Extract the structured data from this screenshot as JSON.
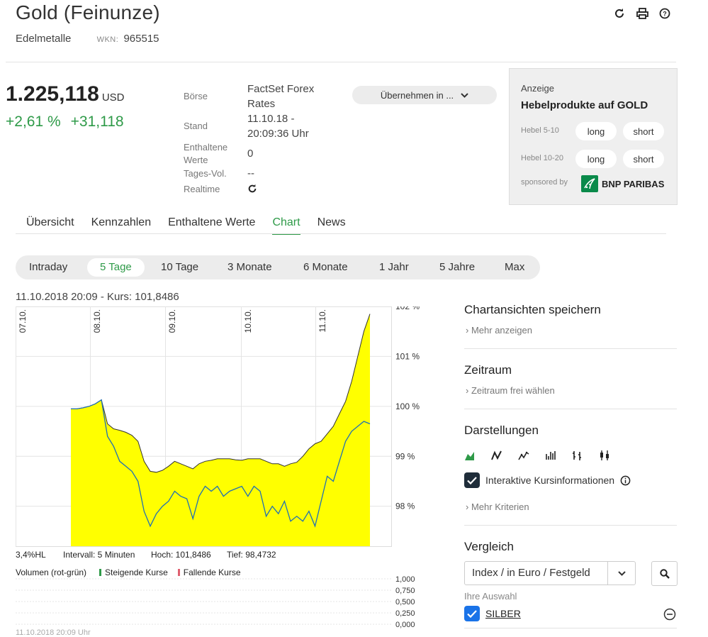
{
  "header": {
    "title": "Gold (Feinunze)",
    "category": "Edelmetalle",
    "wkn_label": "WKN:",
    "wkn": "965515"
  },
  "quote": {
    "price": "1.225,118",
    "currency": "USD",
    "change_pct": "+2,61 %",
    "change_abs": "+31,118"
  },
  "details": {
    "boerse_label": "Börse",
    "boerse_line1": "FactSet Forex",
    "boerse_line2": "Rates",
    "stand_label": "Stand",
    "stand_line1": "11.10.18 -",
    "stand_line2": "20:09:36 Uhr",
    "enth_label_1": "Enthaltene",
    "enth_label_2": "Werte",
    "enth_val": "0",
    "vol_label": "Tages-Vol.",
    "vol_val": "--",
    "realtime_label": "Realtime"
  },
  "take_button": "Übernehmen in ...",
  "ad": {
    "label": "Anzeige",
    "title": "Hebelprodukte auf GOLD",
    "row1": "Hebel 5-10",
    "row2": "Hebel 10-20",
    "long": "long",
    "short": "short",
    "sponsored": "sponsored by",
    "sponsor": "BNP PARIBAS"
  },
  "tabs": [
    "Übersicht",
    "Kennzahlen",
    "Enthaltene Werte",
    "Chart",
    "News"
  ],
  "periods": [
    "Intraday",
    "5 Tage",
    "10 Tage",
    "3 Monate",
    "6 Monate",
    "1 Jahr",
    "5 Jahre",
    "Max"
  ],
  "chart_info": "11.10.2018 20:09  -  Kurs: 101,8486",
  "stats": {
    "hl": "3,4%HL",
    "interval": "Intervall: 5 Minuten",
    "high": "Hoch: 101,8486",
    "low": "Tief: 98,4732"
  },
  "volume": {
    "label": "Volumen (rot-grün)",
    "rising": "Steigende Kurse",
    "falling": "Fallende Kurse",
    "colors": {
      "rising": "#2e9a48",
      "falling": "#e06070"
    }
  },
  "footer_ts": "11.10.2018 20:09 Uhr",
  "right_panel": {
    "save_title": "Chartansichten speichern",
    "more": "Mehr anzeigen",
    "period_title": "Zeitraum",
    "period_link": "Zeitraum frei wählen",
    "repr_title": "Darstellungen",
    "interactive": "Interaktive Kursinformationen",
    "more_criteria": "Mehr Kriterien",
    "compare_title": "Vergleich",
    "compare_select": "Index / in Euro / Festgeld",
    "your_selection": "Ihre Auswahl",
    "selected_item": "SILBER"
  },
  "chart_data": {
    "type": "area",
    "x_tick_labels": [
      "07.10.",
      "08.10.",
      "09.10.",
      "10.10.",
      "11.10."
    ],
    "y_tick_labels": [
      "102 %",
      "101 %",
      "100 %",
      "99 %",
      "98 %"
    ],
    "ylim": [
      97.2,
      102
    ],
    "volume_ticks": [
      "1,000",
      "0,750",
      "0,500",
      "0,250",
      "0,000"
    ],
    "series": [
      {
        "values": [
          99.95,
          99.95,
          99.97,
          100.0,
          100.05,
          100.13,
          99.65,
          99.55,
          99.52,
          99.48,
          99.42,
          99.3,
          98.9,
          98.7,
          98.68,
          98.72,
          98.8,
          98.9,
          98.85,
          98.8,
          98.75,
          98.85,
          98.9,
          98.92,
          98.95,
          98.95,
          98.95,
          98.93,
          98.92,
          98.95,
          98.95,
          98.95,
          98.9,
          98.85,
          98.85,
          98.8,
          98.85,
          98.88,
          99.0,
          99.15,
          99.25,
          99.3,
          99.45,
          99.6,
          99.85,
          100.1,
          100.5,
          101.0,
          101.5,
          101.85
        ],
        "colors": {
          "fill": "#ffff00",
          "line": "#333333"
        }
      },
      {
        "values": [
          99.95,
          99.95,
          99.97,
          100.0,
          100.05,
          100.13,
          99.4,
          99.2,
          98.9,
          98.8,
          98.7,
          98.5,
          97.9,
          97.6,
          97.85,
          98.0,
          98.1,
          98.3,
          98.2,
          98.15,
          97.75,
          98.2,
          98.4,
          98.3,
          98.4,
          98.2,
          98.3,
          98.35,
          98.4,
          98.2,
          98.4,
          98.3,
          97.8,
          98.0,
          97.85,
          98.1,
          97.7,
          97.8,
          97.7,
          97.9,
          97.6,
          98.1,
          98.6,
          98.5,
          98.9,
          99.3,
          99.5,
          99.6,
          99.7,
          99.65
        ],
        "colors": {
          "line": "#1f6fb5"
        }
      }
    ]
  }
}
